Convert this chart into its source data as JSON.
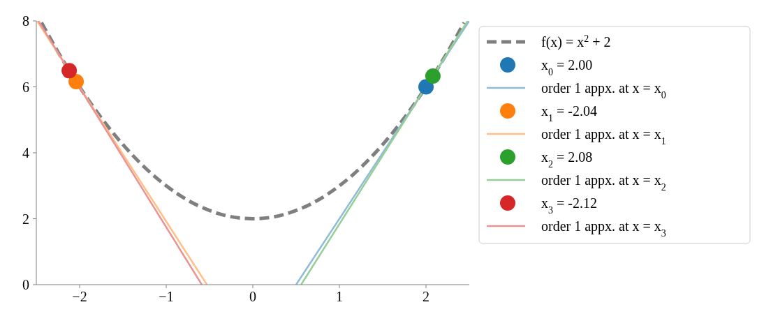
{
  "chart_data": {
    "type": "line",
    "xlim": [
      -2.5,
      2.5
    ],
    "ylim": [
      0,
      8
    ],
    "xticks": [
      {
        "value": -2,
        "label": "−2"
      },
      {
        "value": -1,
        "label": "−1"
      },
      0,
      1,
      2
    ],
    "yticks": [
      0,
      2,
      4,
      6,
      8
    ],
    "grid": false,
    "legend": "right",
    "series": [
      {
        "name": "f(x) = x$^{2}$ + 2",
        "line_style": "dashed",
        "color": "#7f7f7f",
        "x": [
          -2.44,
          -2.25,
          -2,
          -1.75,
          -1.5,
          -1.25,
          -1,
          -0.75,
          -0.5,
          -0.25,
          0,
          0.25,
          0.5,
          0.75,
          1,
          1.25,
          1.5,
          1.75,
          2,
          2.25,
          2.44
        ],
        "values": [
          7.95,
          7.06,
          6,
          5.06,
          4.25,
          3.56,
          3,
          2.56,
          2.25,
          2.06,
          2,
          2.06,
          2.25,
          2.56,
          3,
          3.56,
          4.25,
          5.06,
          6,
          7.06,
          7.95
        ]
      },
      {
        "name": "x$_{0}$ = 2.00",
        "type": "scatter",
        "marker": "circle",
        "color": "#1f77b4",
        "x": [
          2.0
        ],
        "values": [
          6.0
        ]
      },
      {
        "name": "order 1 appx. at x = x$_{0}$",
        "line_style": "solid",
        "color": "#8fbbd9",
        "x": [
          0.5,
          2.5
        ],
        "values": [
          0,
          8
        ]
      },
      {
        "name": "x$_{1}$ = -2.04",
        "type": "scatter",
        "marker": "circle",
        "color": "#ff7f0e",
        "x": [
          -2.04
        ],
        "values": [
          6.16
        ]
      },
      {
        "name": "order 1 appx. at x = x$_{1}$",
        "line_style": "solid",
        "color": "#ffbf86",
        "x": [
          -2.491,
          -0.53
        ],
        "values": [
          8,
          0
        ]
      },
      {
        "name": "x$_{2}$ = 2.08",
        "type": "scatter",
        "marker": "circle",
        "color": "#2ca02c",
        "x": [
          2.08
        ],
        "values": [
          6.33
        ]
      },
      {
        "name": "order 1 appx. at x = x$_{2}$",
        "line_style": "solid",
        "color": "#95cf95",
        "x": [
          0.558,
          2.481
        ],
        "values": [
          0,
          8
        ]
      },
      {
        "name": "x$_{3}$ = -2.12",
        "type": "scatter",
        "marker": "circle",
        "color": "#d62728",
        "x": [
          -2.12
        ],
        "values": [
          6.49
        ]
      },
      {
        "name": "order 1 appx. at x = x$_{3}$",
        "line_style": "solid",
        "color": "#eb9393",
        "x": [
          -2.476,
          -0.589
        ],
        "values": [
          8,
          0
        ]
      }
    ]
  }
}
